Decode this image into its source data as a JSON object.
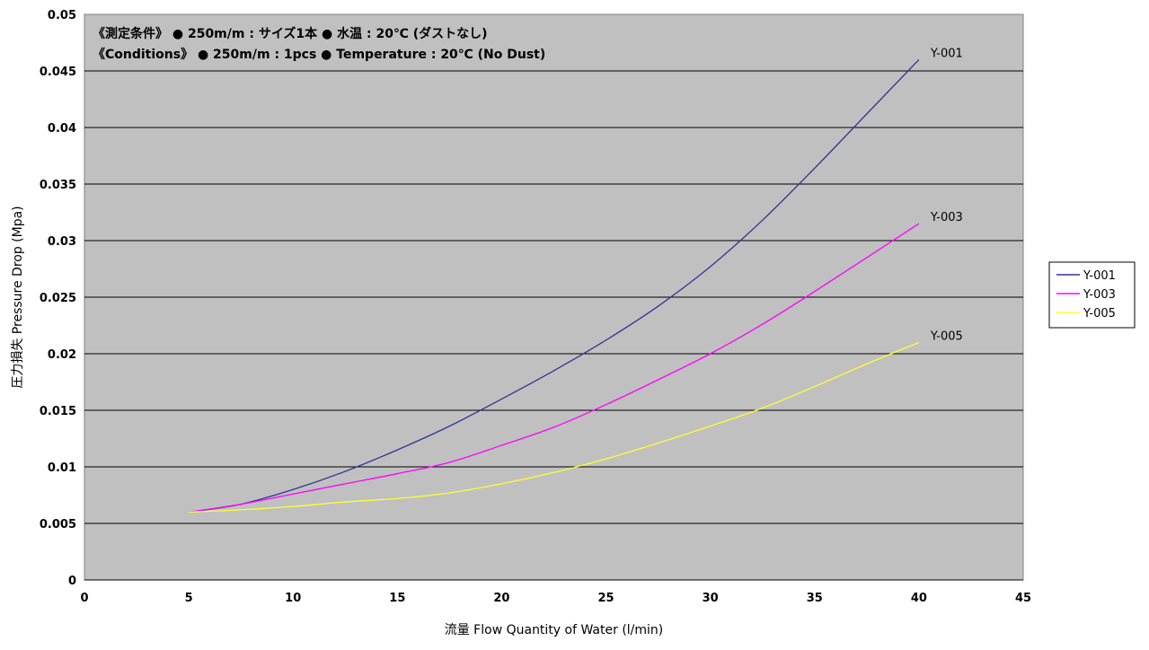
{
  "chart_data": {
    "type": "line",
    "title": "",
    "xlabel": "流量 Flow Quantity of Water (l/min)",
    "ylabel": "圧力損失 Pressure Drop (Mpa)",
    "xlim": [
      0,
      45
    ],
    "ylim": [
      0,
      0.05
    ],
    "x_ticks": [
      0,
      5,
      10,
      15,
      20,
      25,
      30,
      35,
      40,
      45
    ],
    "y_ticks": [
      0,
      0.005,
      0.01,
      0.015,
      0.02,
      0.025,
      0.03,
      0.035,
      0.04,
      0.045,
      0.05
    ],
    "x_tick_labels": [
      "0",
      "5",
      "10",
      "15",
      "20",
      "25",
      "30",
      "35",
      "40",
      "45"
    ],
    "y_tick_labels": [
      "0",
      "0.005",
      "0.01",
      "0.015",
      "0.02",
      "0.025",
      "0.03",
      "0.035",
      "0.04",
      "0.045",
      "0.05"
    ],
    "grid": "horizontal",
    "plot_background": "#c0c0c0",
    "annotations": [
      "《測定条件》 ● 250m/m : サイズ1本 ● 水温 : 20℃ (ダストなし)",
      "《Conditions》 ● 250m/m : 1pcs ● Temperature : 20℃ (No Dust)"
    ],
    "legend_placement": "right",
    "series": [
      {
        "name": "Y-001",
        "color": "#333399",
        "x": [
          5,
          7.5,
          10,
          12.5,
          15,
          17.5,
          20,
          22.5,
          25,
          27.5,
          30,
          32.5,
          35,
          37.5,
          40
        ],
        "y": [
          0.006,
          0.0067,
          0.008,
          0.0096,
          0.0115,
          0.0136,
          0.016,
          0.0185,
          0.0212,
          0.0242,
          0.0277,
          0.0318,
          0.0364,
          0.0412,
          0.046
        ]
      },
      {
        "name": "Y-003",
        "color": "#ff00ff",
        "x": [
          5,
          7.5,
          10,
          12.5,
          15,
          17.5,
          20,
          22.5,
          25,
          27.5,
          30,
          32.5,
          35,
          37.5,
          40
        ],
        "y": [
          0.006,
          0.0067,
          0.0076,
          0.0085,
          0.0094,
          0.0104,
          0.0119,
          0.0135,
          0.0155,
          0.0177,
          0.02,
          0.0226,
          0.0255,
          0.0285,
          0.0315
        ]
      },
      {
        "name": "Y-005",
        "color": "#ffff33",
        "x": [
          5,
          7.5,
          10,
          12.5,
          15,
          17.5,
          20,
          22.5,
          25,
          27.5,
          30,
          32.5,
          35,
          37.5,
          40
        ],
        "y": [
          0.006,
          0.0062,
          0.0065,
          0.0069,
          0.0072,
          0.0077,
          0.0085,
          0.0095,
          0.0107,
          0.0121,
          0.0136,
          0.0152,
          0.0171,
          0.0191,
          0.021
        ]
      }
    ]
  }
}
